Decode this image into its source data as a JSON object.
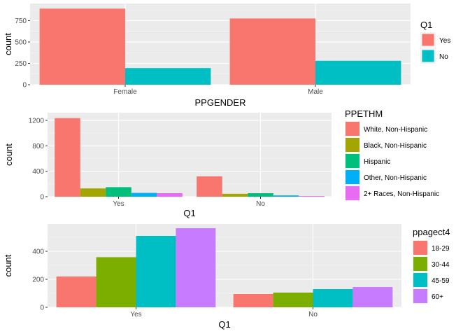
{
  "chart_data": [
    {
      "type": "bar",
      "title": "",
      "xlabel": "PPGENDER",
      "ylabel": "count",
      "categories": [
        "Female",
        "Male"
      ],
      "ylim": [
        0,
        950
      ],
      "yticks": [
        0,
        250,
        500,
        750
      ],
      "grid": true,
      "legend": {
        "title": "Q1",
        "placement": "right"
      },
      "series": [
        {
          "name": "Yes",
          "color": "#F8766D",
          "values": [
            890,
            775
          ]
        },
        {
          "name": "No",
          "color": "#00BFC4",
          "values": [
            195,
            280
          ]
        }
      ]
    },
    {
      "type": "bar",
      "title": "",
      "xlabel": "Q1",
      "ylabel": "count",
      "categories": [
        "Yes",
        "No"
      ],
      "ylim": [
        0,
        1320
      ],
      "yticks": [
        0,
        400,
        800,
        1200
      ],
      "grid": true,
      "legend": {
        "title": "PPETHM",
        "placement": "right"
      },
      "series": [
        {
          "name": "White, Non-Hispanic",
          "color": "#F8766D",
          "values": [
            1235,
            320
          ]
        },
        {
          "name": "Black, Non-Hispanic",
          "color": "#A3A500",
          "values": [
            130,
            45
          ]
        },
        {
          "name": "Hispanic",
          "color": "#00BF7D",
          "values": [
            150,
            55
          ]
        },
        {
          "name": "Other, Non-Hispanic",
          "color": "#00B0F6",
          "values": [
            60,
            20
          ]
        },
        {
          "name": "2+ Races, Non-Hispanic",
          "color": "#E76BF3",
          "values": [
            55,
            10
          ]
        }
      ]
    },
    {
      "type": "bar",
      "title": "",
      "xlabel": "Q1",
      "ylabel": "count",
      "categories": [
        "Yes",
        "No"
      ],
      "ylim": [
        0,
        595
      ],
      "yticks": [
        0,
        200,
        400
      ],
      "grid": true,
      "legend": {
        "title": "ppagect4",
        "placement": "right"
      },
      "series": [
        {
          "name": "18-29",
          "color": "#F8766D",
          "values": [
            220,
            95
          ]
        },
        {
          "name": "30-44",
          "color": "#7CAE00",
          "values": [
            358,
            105
          ]
        },
        {
          "name": "45-59",
          "color": "#00BFC4",
          "values": [
            510,
            130
          ]
        },
        {
          "name": "60+",
          "color": "#C77CFF",
          "values": [
            565,
            145
          ]
        }
      ]
    }
  ]
}
